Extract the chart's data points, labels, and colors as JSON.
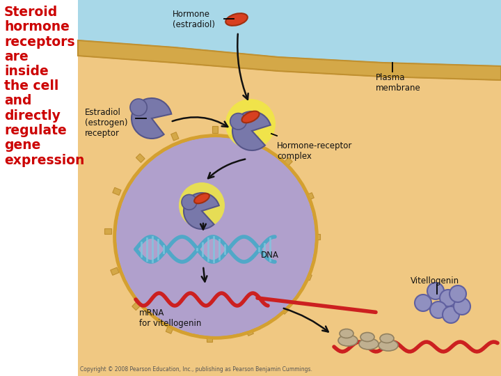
{
  "bg_white": "#ffffff",
  "bg_tan": "#f0c882",
  "bg_blue": "#a8d8e8",
  "nucleus_fill": "#b0a0cc",
  "nucleus_border": "#d4a030",
  "receptor_fill": "#7878aa",
  "receptor_shadow": "#555588",
  "hormone_fill": "#d84020",
  "hormone_edge": "#a03010",
  "glow_fill": "#f0e840",
  "dna_color": "#50a8c8",
  "dna_rung": "#80c8e0",
  "mrna_color": "#cc2020",
  "ribosome_fill": "#c0b090",
  "ribosome_edge": "#908060",
  "vitello_fill": "#9090c0",
  "vitello_edge": "#6060a0",
  "membrane_fill": "#d4a848",
  "membrane_edge": "#c09030",
  "arrow_color": "#111111",
  "text_red": "#cc0000",
  "text_black": "#111111",
  "text_gray": "#555555",
  "title": "Steroid\nhormone\nreceptors\nare\ninside\nthe cell\nand\ndirectly\nregulate\ngene\nexpression",
  "lbl_hormone": "Hormone\n(estradiol)",
  "lbl_estradiol": "Estradiol\n(estrogen)\nreceptor",
  "lbl_plasma": "Plasma\nmembrane",
  "lbl_complex": "Hormone-receptor\ncomplex",
  "lbl_dna": "DNA",
  "lbl_mrna": "mRNA\nfor vitellogenin",
  "lbl_vitellogenin": "Vitellogenin",
  "copyright": "Copyright © 2008 Pearson Education, Inc., publishing as Pearson Benjamin Cummings."
}
